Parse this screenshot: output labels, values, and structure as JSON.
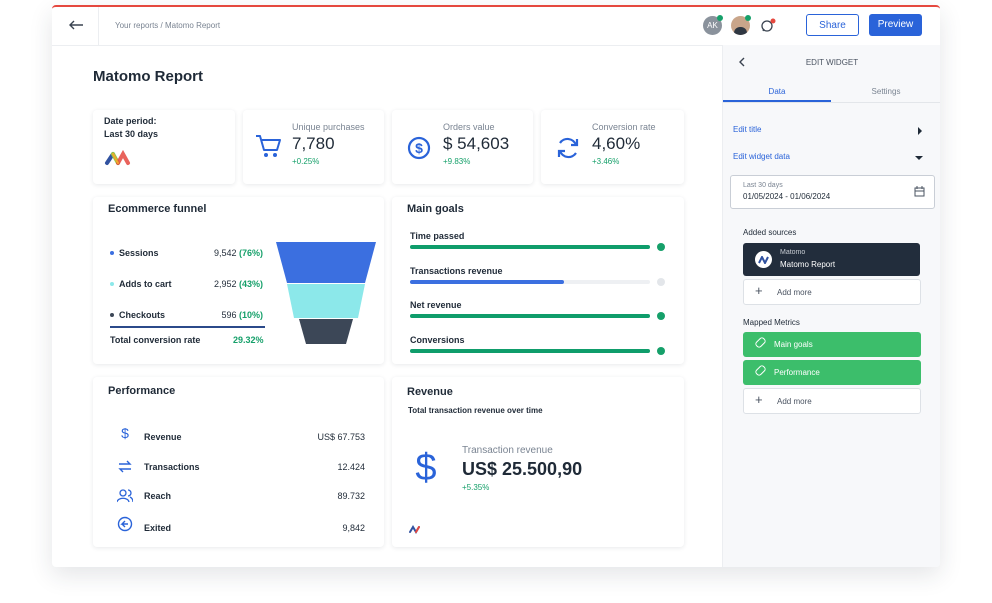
{
  "header": {
    "breadcrumb": "Your reports / Matomo Report",
    "avatar_initials": "AK",
    "share": "Share",
    "preview": "Preview"
  },
  "report": {
    "title": "Matomo Report",
    "date_period": {
      "label": "Date period:",
      "value": "Last 30 days"
    },
    "kpis": [
      {
        "label": "Unique purchases",
        "value": "7,780",
        "change": "+0.25%"
      },
      {
        "label": "Orders value",
        "value": "$ 54,603",
        "change": "+9.83%"
      },
      {
        "label": "Conversion rate",
        "value": "4,60%",
        "change": "+3.46%"
      }
    ],
    "funnel": {
      "title": "Ecommerce funnel",
      "steps": [
        {
          "name": "Sessions",
          "value": "9,542",
          "percent": "(76%)"
        },
        {
          "name": "Adds to cart",
          "value": "2,952",
          "percent": "(43%)"
        },
        {
          "name": "Checkouts",
          "value": "596",
          "percent": "(10%)"
        }
      ],
      "total_label": "Total conversion rate",
      "total_value": "29.32%"
    },
    "goals": {
      "title": "Main goals",
      "items": [
        {
          "name": "Time passed",
          "progress": 100,
          "done": true
        },
        {
          "name": "Transactions revenue",
          "progress": 64,
          "done": false
        },
        {
          "name": "Net revenue",
          "progress": 100,
          "done": true
        },
        {
          "name": "Conversions",
          "progress": 100,
          "done": true
        }
      ]
    },
    "performance": {
      "title": "Performance",
      "rows": [
        {
          "name": "Revenue",
          "value": "US$ 67.753"
        },
        {
          "name": "Transactions",
          "value": "12.424"
        },
        {
          "name": "Reach",
          "value": "89.732"
        },
        {
          "name": "Exited",
          "value": "9,842"
        }
      ]
    },
    "revenue": {
      "title": "Revenue",
      "subtitle": "Total transaction revenue over time",
      "metric": "Transaction revenue",
      "value": "US$ 25.500,90",
      "change": "+5.35%"
    }
  },
  "panel": {
    "title": "EDIT WIDGET",
    "tabs": [
      "Data",
      "Settings"
    ],
    "edit_title": "Edit title",
    "edit_data": "Edit widget data",
    "date_range": {
      "label": "Last 30 days",
      "value": "01/05/2024 - 01/06/2024"
    },
    "sources_title": "Added sources",
    "source": {
      "provider": "Matomo",
      "name": "Matomo Report"
    },
    "add_more": "Add more",
    "metrics_title": "Mapped Metrics",
    "metrics": [
      "Main goals",
      "Performance"
    ],
    "add_more_metrics": "Add more"
  }
}
